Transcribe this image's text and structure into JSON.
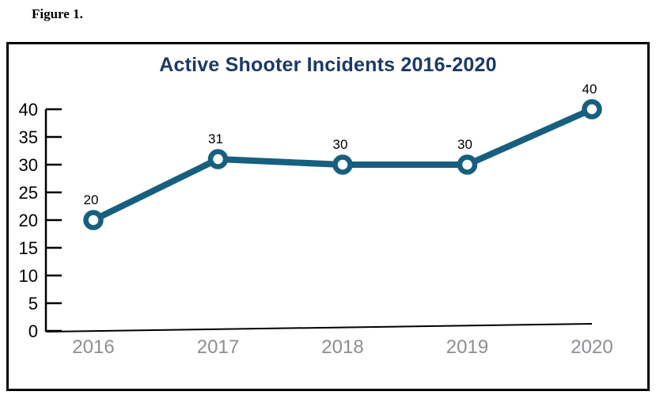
{
  "figure_label": "Figure 1.",
  "colors": {
    "line": "#175F7E",
    "marker_fill": "#FFFFFF",
    "title": "#1B3A64",
    "x_tick_label": "#8B8E92",
    "y_tick_label": "#000000",
    "data_label": "#000000",
    "axis": "#000000",
    "border": "#000000",
    "background": "#FFFFFF"
  },
  "chart_data": {
    "type": "line",
    "title": "Active Shooter Incidents 2016-2020",
    "categories": [
      "2016",
      "2017",
      "2018",
      "2019",
      "2020"
    ],
    "values": [
      20,
      31,
      30,
      30,
      40
    ],
    "data_labels": [
      "20",
      "31",
      "30",
      "30",
      "40"
    ],
    "yticks": [
      0,
      5,
      10,
      15,
      20,
      25,
      30,
      35,
      40
    ],
    "ylim": [
      0,
      40
    ],
    "xlabel": "",
    "ylabel": "",
    "grid": false,
    "legend": "none",
    "show_point_labels": true
  }
}
